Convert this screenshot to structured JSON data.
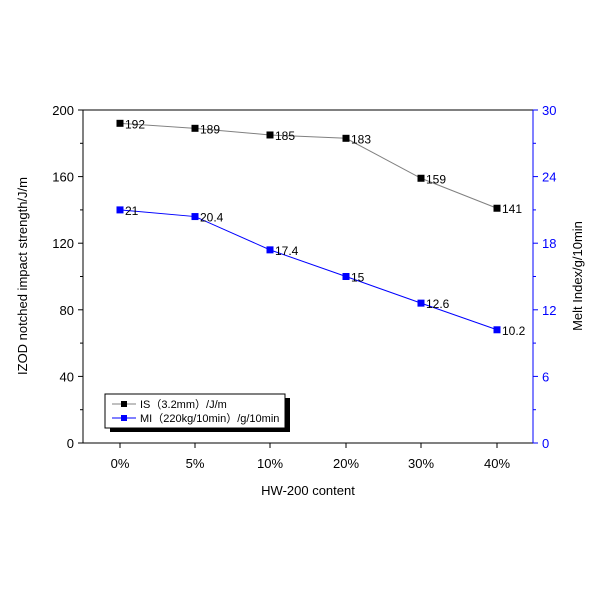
{
  "chart_data": {
    "type": "line",
    "xlabel": "HW-200 content",
    "ylabel": "IZOD notched impact strength/J/m",
    "y2label": "Melt Index/g/10min",
    "categories": [
      "0%",
      "5%",
      "10%",
      "20%",
      "30%",
      "40%"
    ],
    "ylim": [
      0,
      200
    ],
    "yticks": [
      "0",
      "40",
      "80",
      "120",
      "160",
      "200"
    ],
    "y2lim": [
      0,
      30
    ],
    "y2ticks": [
      "0",
      "6",
      "12",
      "18",
      "24",
      "30"
    ],
    "grid": false,
    "legend_position": "bottom-left",
    "series": [
      {
        "name": "IS（3.2mm）/J/m",
        "axis": "left",
        "color": "#000000",
        "line_color": "#808080",
        "values": [
          192,
          189,
          185,
          183,
          159,
          141
        ],
        "labels": [
          "192",
          "189",
          "185",
          "183",
          "159",
          "141"
        ]
      },
      {
        "name": "MI（220kg/10min）/g/10min",
        "axis": "right",
        "color": "#0000ff",
        "line_color": "#0000ff",
        "values": [
          21,
          20.4,
          17.4,
          15,
          12.6,
          10.2
        ],
        "labels": [
          "21",
          "20.4",
          "17.4",
          "15",
          "12.6",
          "10.2"
        ]
      }
    ]
  },
  "colors": {
    "left_axis": "#000000",
    "right_axis": "#0000ff"
  }
}
